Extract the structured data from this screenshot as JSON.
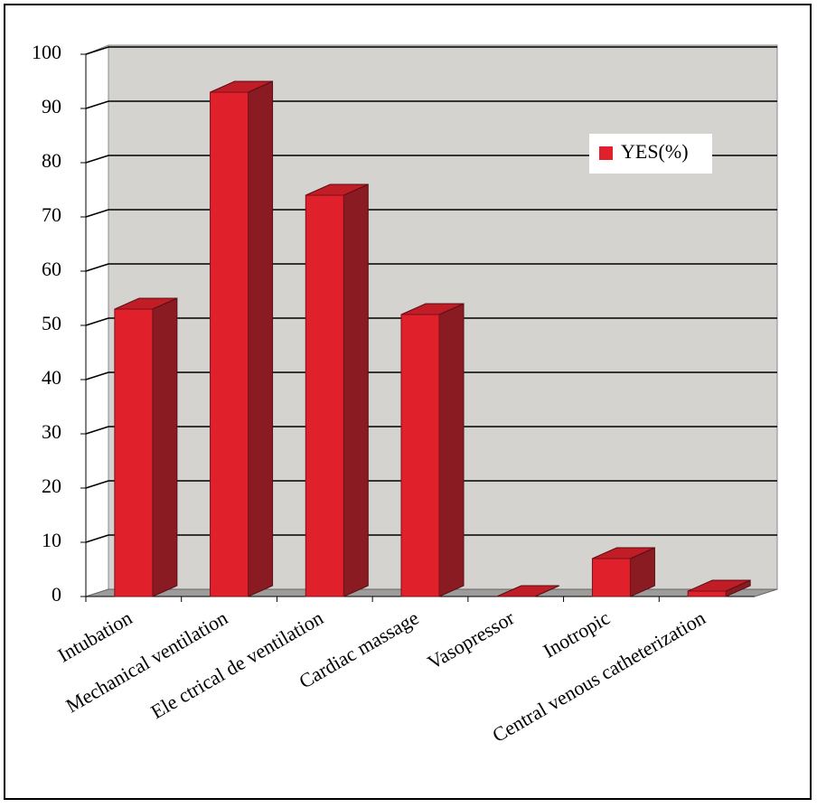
{
  "chart_data": {
    "type": "bar3d",
    "categories": [
      "Intubation",
      "Mechanical ventilation",
      "Ele ctrical de ventilation",
      "Cardiac massage",
      "Vasopressor",
      "Inotropic",
      "Central venous catheterization"
    ],
    "series": [
      {
        "name": "YES(%)",
        "color": "#e0202a",
        "values": [
          53,
          93,
          74,
          52,
          0,
          7,
          1
        ]
      }
    ],
    "ylim": [
      0,
      100
    ],
    "yticks": [
      0,
      10,
      20,
      30,
      40,
      50,
      60,
      70,
      80,
      90,
      100
    ],
    "grid": true,
    "legend": "upper right"
  }
}
